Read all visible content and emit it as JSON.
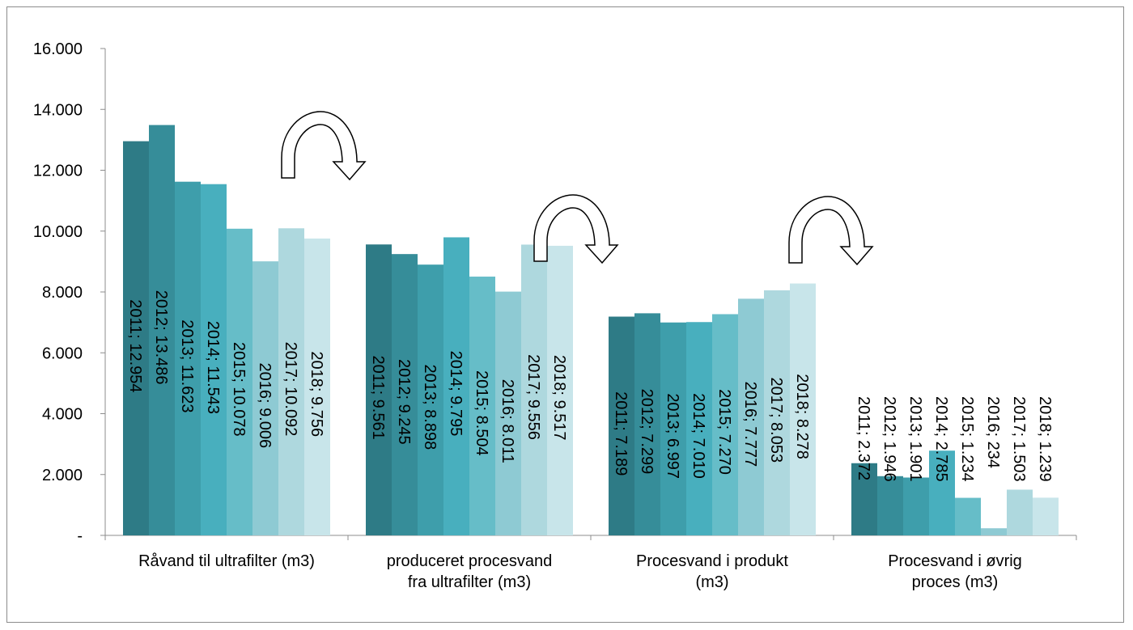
{
  "chart_data": {
    "type": "bar",
    "title": "",
    "xlabel": "",
    "ylabel": "",
    "ylim": [
      0,
      16000
    ],
    "y_ticks": [
      "-",
      "2.000",
      "4.000",
      "6.000",
      "8.000",
      "10.000",
      "12.000",
      "14.000",
      "16.000"
    ],
    "y_tick_values": [
      0,
      2000,
      4000,
      6000,
      8000,
      10000,
      12000,
      14000,
      16000
    ],
    "grid": false,
    "legend": "none",
    "categories": [
      [
        "Råvand til ultrafilter (m3)"
      ],
      [
        "produceret procesvand",
        "fra ultrafilter (m3)"
      ],
      [
        "Procesvand i produkt",
        "(m3)"
      ],
      [
        "Procesvand i øvrig",
        "proces (m3)"
      ]
    ],
    "series": [
      {
        "year": "2011",
        "color": "#2e7b86",
        "values": [
          12954,
          9561,
          7189,
          2372
        ],
        "labels": [
          "2011; 12.954",
          "2011; 9.561",
          "2011; 7.189",
          "2011; 2.372"
        ]
      },
      {
        "year": "2012",
        "color": "#368d99",
        "values": [
          13486,
          9245,
          7299,
          1946
        ],
        "labels": [
          "2012; 13.486",
          "2012; 9.245",
          "2012; 7.299",
          "2012; 1.946"
        ]
      },
      {
        "year": "2013",
        "color": "#3e9eab",
        "values": [
          11623,
          8898,
          6997,
          1901
        ],
        "labels": [
          "2013; 11.623",
          "2013; 8.898",
          "2013; 6.997",
          "2013; 1.901"
        ]
      },
      {
        "year": "2014",
        "color": "#48afbe",
        "values": [
          11543,
          9795,
          7010,
          2785
        ],
        "labels": [
          "2014; 11.543",
          "2014; 9.795",
          "2014; 7.010",
          "2014; 2.785"
        ]
      },
      {
        "year": "2015",
        "color": "#66bdc8",
        "values": [
          10078,
          8504,
          7270,
          1234
        ],
        "labels": [
          "2015; 10.078",
          "2015; 8.504",
          "2015; 7.270",
          "2015; 1.234"
        ]
      },
      {
        "year": "2016",
        "color": "#8ecad3",
        "values": [
          9006,
          8011,
          7777,
          234
        ],
        "labels": [
          "2016; 9.006",
          "2016; 8.011",
          "2016; 7.777",
          "2016; 234"
        ]
      },
      {
        "year": "2017",
        "color": "#aed8de",
        "values": [
          10092,
          9556,
          8053,
          1503
        ],
        "labels": [
          "2017; 10.092",
          "2017; 9.556",
          "2017; 8.053",
          "2017; 1.503"
        ]
      },
      {
        "year": "2018",
        "color": "#c8e5ea",
        "values": [
          9756,
          9517,
          8278,
          1239
        ],
        "labels": [
          "2018; 9.756",
          "2018; 9.517",
          "2018; 8.278",
          "2018; 1.239"
        ]
      }
    ],
    "annotations": [
      "curved-arrow-icon",
      "curved-arrow-icon",
      "curved-arrow-icon"
    ]
  }
}
